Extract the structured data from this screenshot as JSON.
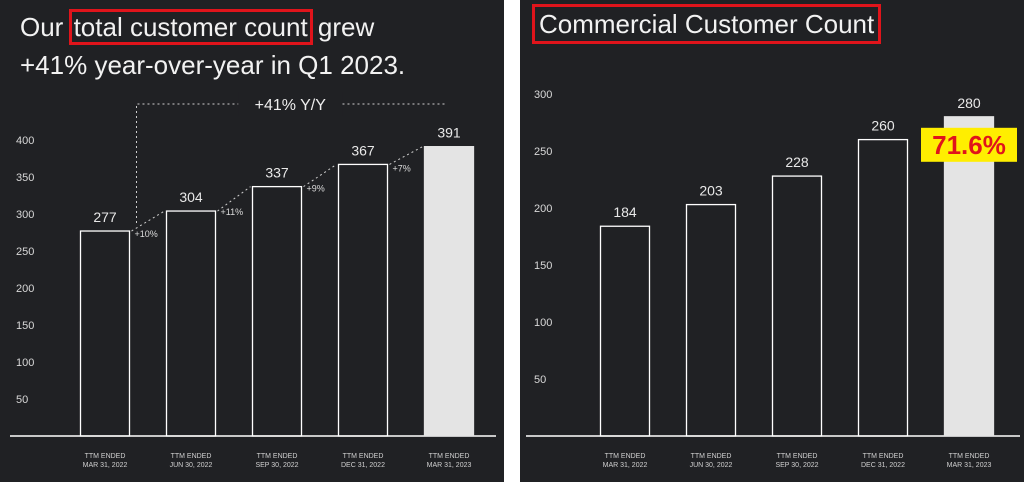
{
  "left": {
    "headline_pre": "Our ",
    "headline_box": "total customer count",
    "headline_post": " grew",
    "headline_line2": "+41% year-over-year in Q1 2023."
  },
  "right": {
    "title": "Commercial Customer Count"
  },
  "colors": {
    "background": "#202124",
    "bar_outline": "#ffffff",
    "bar_highlight": "#e4e4e4",
    "callout_box": "#e0141b",
    "badge_bg": "#ffee00",
    "badge_text": "#e0141b"
  },
  "chart_data": [
    {
      "type": "bar",
      "categories": [
        [
          "TTM ENDED",
          "MAR 31, 2022"
        ],
        [
          "TTM ENDED",
          "JUN 30, 2022"
        ],
        [
          "TTM ENDED",
          "SEP 30, 2022"
        ],
        [
          "TTM ENDED",
          "DEC 31, 2022"
        ],
        [
          "TTM ENDED",
          "MAR 31, 2023"
        ]
      ],
      "values": [
        277,
        304,
        337,
        367,
        391
      ],
      "value_labels": [
        "277",
        "304",
        "337",
        "367",
        "391"
      ],
      "growth_labels": [
        "+10%",
        "+11%",
        "+9%",
        "+7%"
      ],
      "yoy_label": "+41% Y/Y",
      "ylim": [
        0,
        400
      ],
      "yticks": [
        50,
        100,
        150,
        200,
        250,
        300,
        350,
        400
      ],
      "highlighted_index": 4
    },
    {
      "type": "bar",
      "categories": [
        [
          "TTM ENDED",
          "MAR 31, 2022"
        ],
        [
          "TTM ENDED",
          "JUN 30, 2022"
        ],
        [
          "TTM ENDED",
          "SEP 30, 2022"
        ],
        [
          "TTM ENDED",
          "DEC 31, 2022"
        ],
        [
          "TTM ENDED",
          "MAR 31, 2023"
        ]
      ],
      "values": [
        184,
        203,
        228,
        260,
        280
      ],
      "value_labels": [
        "184",
        "203",
        "228",
        "260",
        "280"
      ],
      "ylim": [
        0,
        300
      ],
      "yticks": [
        50,
        100,
        150,
        200,
        250,
        300
      ],
      "highlighted_index": 4,
      "callout": "71.6%"
    }
  ]
}
